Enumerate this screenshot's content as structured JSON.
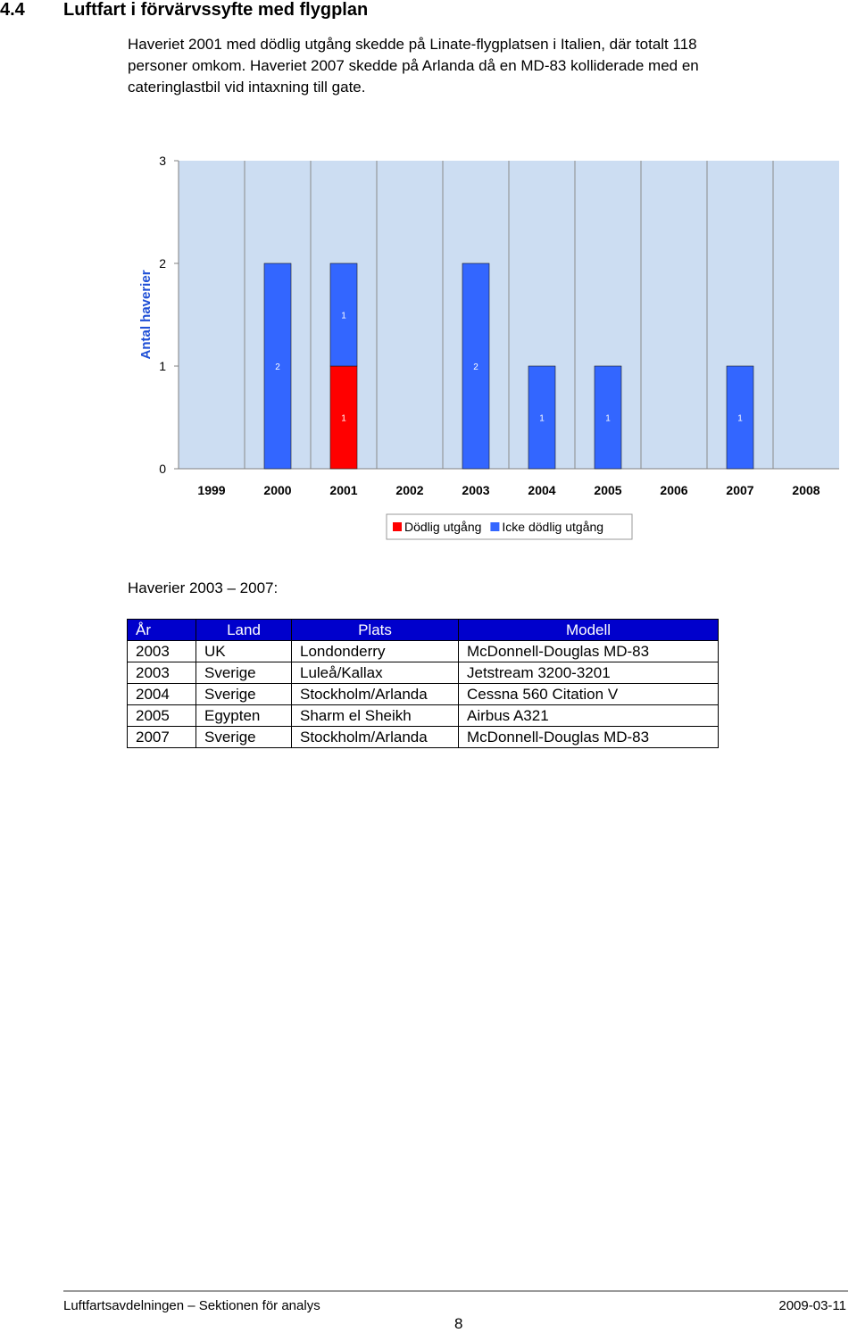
{
  "section": {
    "number": "4.4",
    "title": "Luftfart i förvärvssyfte med flygplan"
  },
  "intro": {
    "line1": "Haveriet 2001 med dödlig utgång skedde på Linate-flygplatsen i Italien, där totalt 118",
    "line2": "personer omkom. Haveriet 2007 skedde på Arlanda då en MD-83 kolliderade med en",
    "line3": "cateringlastbil vid intaxning till gate."
  },
  "chart_data": {
    "type": "bar",
    "stacked": true,
    "categories": [
      "1999",
      "2000",
      "2001",
      "2002",
      "2003",
      "2004",
      "2005",
      "2006",
      "2007",
      "2008"
    ],
    "series": [
      {
        "name": "Dödlig utgång",
        "color": "#ff0000",
        "values": [
          0,
          0,
          1,
          0,
          0,
          0,
          0,
          0,
          0,
          0
        ]
      },
      {
        "name": "Icke dödlig utgång",
        "color": "#3366ff",
        "values": [
          0,
          2,
          1,
          0,
          2,
          1,
          1,
          0,
          1,
          0
        ]
      }
    ],
    "data_labels": [
      {
        "category": "2000",
        "series": "Icke dödlig utgång",
        "text": "2"
      },
      {
        "category": "2001",
        "series": "Dödlig utgång",
        "text": "1"
      },
      {
        "category": "2001",
        "series": "Icke dödlig utgång",
        "text": "1"
      },
      {
        "category": "2003",
        "series": "Icke dödlig utgång",
        "text": "2"
      },
      {
        "category": "2004",
        "series": "Icke dödlig utgång",
        "text": "1"
      },
      {
        "category": "2005",
        "series": "Icke dödlig utgång",
        "text": "1"
      },
      {
        "category": "2007",
        "series": "Icke dödlig utgång",
        "text": "1"
      }
    ],
    "xlabel": "",
    "ylabel": "Antal haverier",
    "ylim": [
      0,
      3
    ],
    "yticks": [
      "0",
      "1",
      "2",
      "3"
    ],
    "grid": "vertical",
    "plot_background": "#ccddf2",
    "legend": "bottom"
  },
  "subheading": "Haverier 2003 – 2007:",
  "table": {
    "header_color": "#0000cc",
    "columns": [
      "År",
      "Land",
      "Plats",
      "Modell"
    ],
    "rows": [
      [
        "2003",
        "UK",
        "Londonderry",
        "McDonnell-Douglas MD-83"
      ],
      [
        "2003",
        "Sverige",
        "Luleå/Kallax",
        "Jetstream 3200-3201"
      ],
      [
        "2004",
        "Sverige",
        "Stockholm/Arlanda",
        "Cessna 560 Citation V"
      ],
      [
        "2005",
        "Egypten",
        "Sharm el Sheikh",
        "Airbus A321"
      ],
      [
        "2007",
        "Sverige",
        "Stockholm/Arlanda",
        "McDonnell-Douglas MD-83"
      ]
    ]
  },
  "footer": {
    "left": "Luftfartsavdelningen – Sektionen för analys",
    "right": "2009-03-11",
    "page": "8"
  }
}
